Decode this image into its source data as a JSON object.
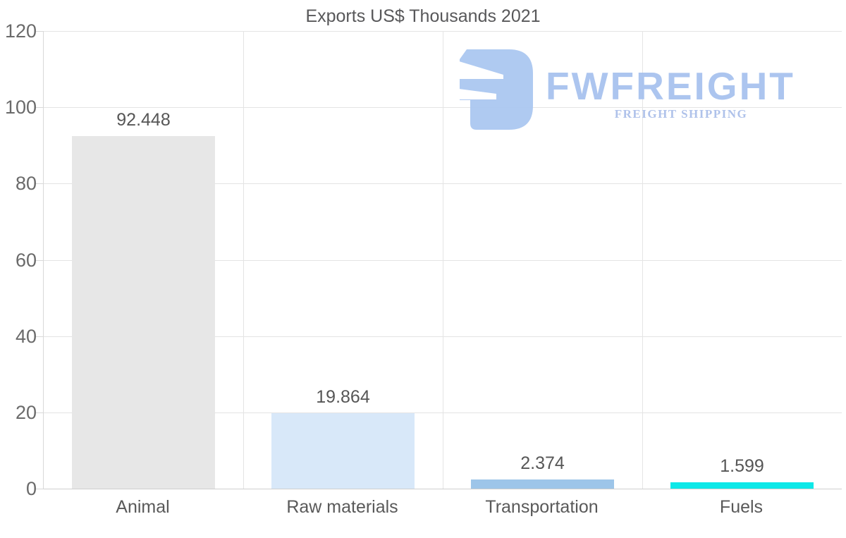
{
  "title": "Exports US$ Thousands 2021",
  "watermark": {
    "wordmark": "FWFREIGHT",
    "subtitle": "FREIGHT SHIPPING"
  },
  "chart_data": {
    "type": "bar",
    "title": "Exports US$ Thousands 2021",
    "categories": [
      "Animal",
      "Raw materials",
      "Transportation",
      "Fuels"
    ],
    "values": [
      92.448,
      19.864,
      2.374,
      1.599
    ],
    "value_labels": [
      "92.448",
      "19.864",
      "2.374",
      "1.599"
    ],
    "bar_colors": [
      "#e7e7e7",
      "#d8e8f9",
      "#9dc5e9",
      "#0de8e8"
    ],
    "ylim": [
      0,
      120
    ],
    "y_ticks": [
      0,
      20,
      40,
      60,
      80,
      100,
      120
    ],
    "grid": true,
    "legend": "none",
    "xlabel": "",
    "ylabel": ""
  },
  "colors": {
    "title_text": "#58585a",
    "axis_text": "#6a6a6a",
    "value_text": "#565656",
    "category_text": "#595959",
    "gridline": "#e4e4e4",
    "axis_line": "#d8d8d8",
    "watermark_mark": "#a9c6f0",
    "watermark_text": "#a6c1ee",
    "watermark_subtitle": "#a9bde9",
    "background": "#ffffff"
  }
}
